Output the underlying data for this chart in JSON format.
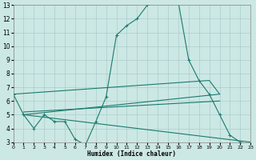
{
  "bg_color": "#cce8e4",
  "grid_color": "#aacccc",
  "line_color": "#1a7a6e",
  "xlabel": "Humidex (Indice chaleur)",
  "xlim": [
    0,
    23
  ],
  "ylim": [
    3,
    13
  ],
  "xtick_vals": [
    0,
    1,
    2,
    3,
    4,
    5,
    6,
    7,
    8,
    9,
    10,
    11,
    12,
    13,
    14,
    15,
    16,
    17,
    18,
    19,
    20,
    21,
    22,
    23
  ],
  "ytick_vals": [
    3,
    4,
    5,
    6,
    7,
    8,
    9,
    10,
    11,
    12,
    13
  ],
  "series": [
    {
      "x": [
        0,
        1,
        2,
        3,
        4,
        5,
        6,
        7,
        8,
        9,
        10,
        11,
        12,
        13,
        14,
        15,
        16,
        17,
        18,
        19,
        20,
        21,
        22,
        23
      ],
      "y": [
        6.5,
        5.0,
        4.0,
        5.0,
        4.5,
        4.5,
        3.2,
        2.8,
        4.5,
        6.3,
        10.8,
        11.5,
        12.0,
        13.0,
        13.2,
        13.3,
        13.2,
        9.0,
        7.5,
        6.5,
        5.0,
        3.5,
        3.0,
        2.8
      ],
      "marker": true
    },
    {
      "x": [
        0,
        19,
        20
      ],
      "y": [
        6.5,
        7.5,
        6.5
      ],
      "marker": false
    },
    {
      "x": [
        1,
        20
      ],
      "y": [
        5.0,
        6.5
      ],
      "marker": false
    },
    {
      "x": [
        1,
        20
      ],
      "y": [
        5.2,
        6.0
      ],
      "marker": false
    },
    {
      "x": [
        1,
        23
      ],
      "y": [
        5.0,
        3.0
      ],
      "marker": false
    }
  ]
}
